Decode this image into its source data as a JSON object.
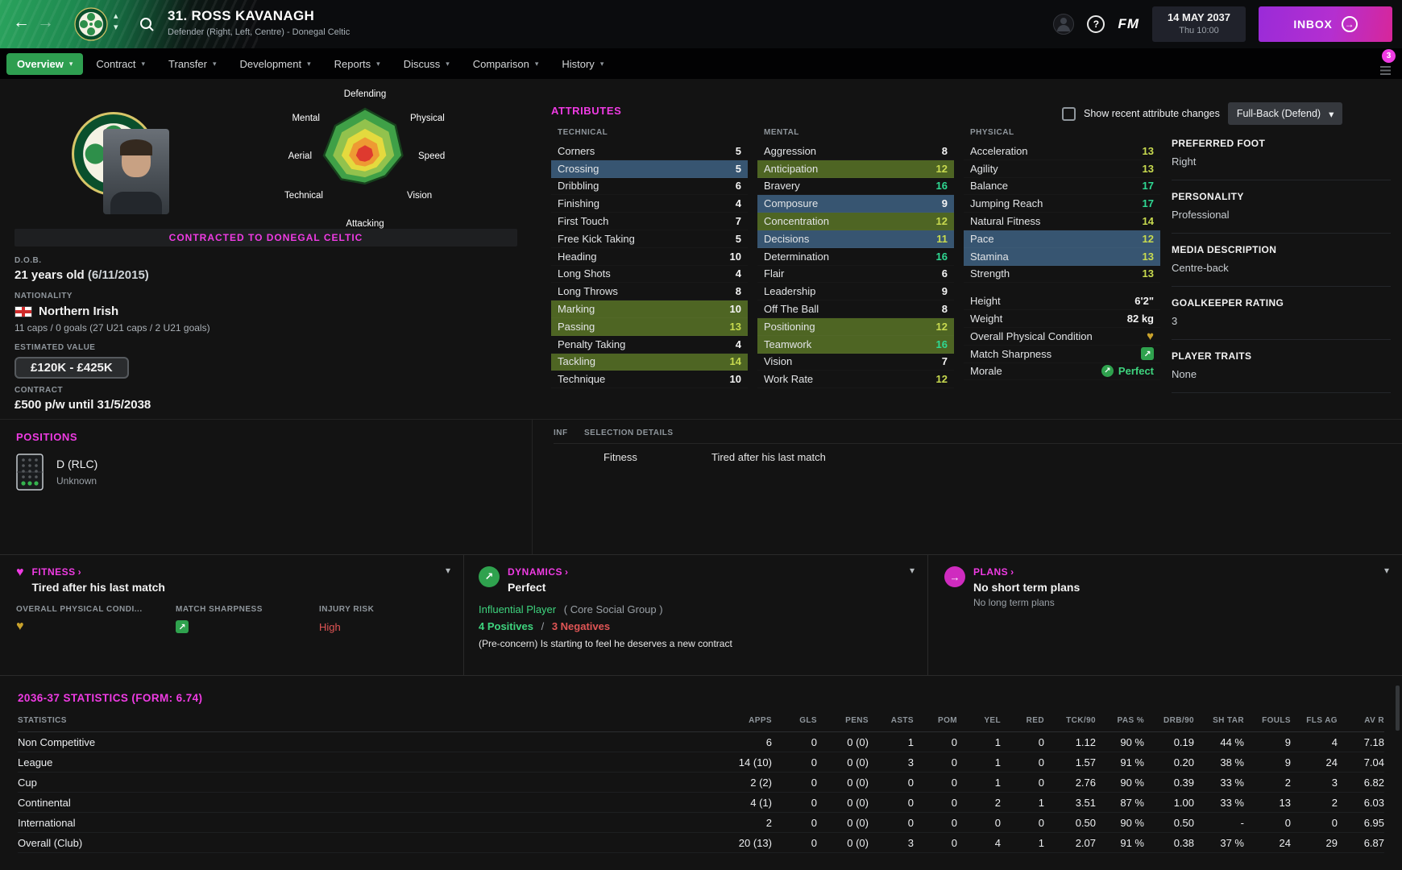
{
  "colors": {
    "accent": "#ef3be3",
    "tab_green": "#2e9e50",
    "key_attr_bg": "#4e6523",
    "pref_attr_bg": "#375571",
    "value_high": "#2fd993",
    "value_mid": "#c8da4f",
    "positive": "#3ed47e",
    "negative": "#e05555",
    "inbox_purple": "#b42fd0"
  },
  "icons": {
    "back_arrow": "←",
    "forward_arrow": "→",
    "cycle_up": "▴",
    "cycle_down": "▾",
    "chevron_down": "▾",
    "dropdown_chevron": "▾",
    "panel_link_arrow": "›",
    "arrow_up_right": "↗",
    "heart": "♥",
    "inbox_arrow": "→",
    "help": "?"
  },
  "topbar": {
    "player_title": "31. ROSS KAVANAGH",
    "player_subtitle": "Defender (Right, Left, Centre) - Donegal Celtic",
    "date": "14 MAY 2037",
    "time": "Thu 10:00",
    "inbox": "INBOX",
    "fm": "FM"
  },
  "notification_count": "3",
  "tabs": [
    {
      "label": "Overview",
      "selected": true
    },
    {
      "label": "Contract"
    },
    {
      "label": "Transfer"
    },
    {
      "label": "Development"
    },
    {
      "label": "Reports"
    },
    {
      "label": "Discuss"
    },
    {
      "label": "Comparison"
    },
    {
      "label": "History"
    }
  ],
  "profile": {
    "contracted": "CONTRACTED TO DONEGAL CELTIC",
    "dob_label": "D.O.B.",
    "age": "21 years old",
    "dob": "(6/11/2015)",
    "nationality_label": "NATIONALITY",
    "nationality": "Northern Irish",
    "caps": "11 caps / 0 goals (27 U21 caps / 2 U21 goals)",
    "value_label": "ESTIMATED VALUE",
    "value": "£120K - £425K",
    "contract_label": "CONTRACT",
    "contract": "£500 p/w until 31/5/2038"
  },
  "positions": {
    "header": "POSITIONS",
    "primary": "D (RLC)",
    "familiarity": "Unknown"
  },
  "radar": {
    "labels": [
      "Defending",
      "Physical",
      "Speed",
      "Vision",
      "Attacking",
      "Technical",
      "Aerial",
      "Mental"
    ],
    "shape": [
      1.0,
      0.92,
      0.8,
      0.62,
      0.6,
      0.72,
      0.88,
      0.9
    ]
  },
  "attributes": {
    "header": "ATTRIBUTES",
    "controls": {
      "show_changes": "Show recent attribute changes",
      "role": "Full-Back (Defend)"
    },
    "technical": {
      "title": "TECHNICAL",
      "rows": [
        {
          "name": "Corners",
          "value": 5,
          "hl": ""
        },
        {
          "name": "Crossing",
          "value": 5,
          "hl": "pref"
        },
        {
          "name": "Dribbling",
          "value": 6,
          "hl": ""
        },
        {
          "name": "Finishing",
          "value": 4,
          "hl": ""
        },
        {
          "name": "First Touch",
          "value": 7,
          "hl": ""
        },
        {
          "name": "Free Kick Taking",
          "value": 5,
          "hl": ""
        },
        {
          "name": "Heading",
          "value": 10,
          "hl": ""
        },
        {
          "name": "Long Shots",
          "value": 4,
          "hl": ""
        },
        {
          "name": "Long Throws",
          "value": 8,
          "hl": ""
        },
        {
          "name": "Marking",
          "value": 10,
          "hl": "key"
        },
        {
          "name": "Passing",
          "value": 13,
          "hl": "key"
        },
        {
          "name": "Penalty Taking",
          "value": 4,
          "hl": ""
        },
        {
          "name": "Tackling",
          "value": 14,
          "hl": "key"
        },
        {
          "name": "Technique",
          "value": 10,
          "hl": ""
        }
      ]
    },
    "mental": {
      "title": "MENTAL",
      "rows": [
        {
          "name": "Aggression",
          "value": 8,
          "hl": ""
        },
        {
          "name": "Anticipation",
          "value": 12,
          "hl": "key"
        },
        {
          "name": "Bravery",
          "value": 16,
          "hl": ""
        },
        {
          "name": "Composure",
          "value": 9,
          "hl": "pref"
        },
        {
          "name": "Concentration",
          "value": 12,
          "hl": "key"
        },
        {
          "name": "Decisions",
          "value": 11,
          "hl": "pref"
        },
        {
          "name": "Determination",
          "value": 16,
          "hl": ""
        },
        {
          "name": "Flair",
          "value": 6,
          "hl": ""
        },
        {
          "name": "Leadership",
          "value": 9,
          "hl": ""
        },
        {
          "name": "Off The Ball",
          "value": 8,
          "hl": ""
        },
        {
          "name": "Positioning",
          "value": 12,
          "hl": "key"
        },
        {
          "name": "Teamwork",
          "value": 16,
          "hl": "key"
        },
        {
          "name": "Vision",
          "value": 7,
          "hl": ""
        },
        {
          "name": "Work Rate",
          "value": 12,
          "hl": ""
        }
      ]
    },
    "physical": {
      "title": "PHYSICAL",
      "rows": [
        {
          "name": "Acceleration",
          "value": 13,
          "hl": ""
        },
        {
          "name": "Agility",
          "value": 13,
          "hl": ""
        },
        {
          "name": "Balance",
          "value": 17,
          "hl": ""
        },
        {
          "name": "Jumping Reach",
          "value": 17,
          "hl": ""
        },
        {
          "name": "Natural Fitness",
          "value": 14,
          "hl": ""
        },
        {
          "name": "Pace",
          "value": 12,
          "hl": "pref"
        },
        {
          "name": "Stamina",
          "value": 13,
          "hl": "pref"
        },
        {
          "name": "Strength",
          "value": 13,
          "hl": ""
        }
      ]
    },
    "extras": [
      {
        "name": "Height",
        "value": "6'2\""
      },
      {
        "name": "Weight",
        "value": "82 kg"
      },
      {
        "name": "Overall Physical Condition",
        "icon": "condition-heart"
      },
      {
        "name": "Match Sharpness",
        "icon": "sharpness"
      },
      {
        "name": "Morale",
        "value": "Perfect",
        "icon": "morale"
      }
    ]
  },
  "side_info": [
    {
      "label": "PREFERRED FOOT",
      "value": "Right"
    },
    {
      "label": "PERSONALITY",
      "value": "Professional"
    },
    {
      "label": "MEDIA DESCRIPTION",
      "value": "Centre-back"
    },
    {
      "label": "GOALKEEPER RATING",
      "value": "3"
    },
    {
      "label": "PLAYER TRAITS",
      "value": "None"
    }
  ],
  "selection": {
    "inf": "INF",
    "title": "SELECTION DETAILS",
    "rows": [
      {
        "label": "Fitness",
        "value": "Tired after his last match"
      }
    ]
  },
  "panels": {
    "fitness": {
      "title": "FITNESS",
      "status": "Tired after his last match",
      "condition_label": "OVERALL PHYSICAL CONDI...",
      "sharpness_label": "MATCH SHARPNESS",
      "injury_label": "INJURY RISK",
      "injury_value": "High"
    },
    "dynamics": {
      "title": "DYNAMICS",
      "status": "Perfect",
      "role": "Influential Player",
      "role_group": "( Core Social Group )",
      "positives": "4 Positives",
      "separator": "/",
      "negatives": "3 Negatives",
      "concern": "(Pre-concern) Is starting to feel he deserves a new contract"
    },
    "plans": {
      "title": "PLANS",
      "short_term": "No short term plans",
      "long_term": "No long term plans"
    }
  },
  "stats": {
    "header": "2036-37 STATISTICS (FORM: 6.74)",
    "columns": [
      "STATISTICS",
      "APPS",
      "GLS",
      "PENS",
      "ASTS",
      "POM",
      "YEL",
      "RED",
      "TCK/90",
      "PAS %",
      "DRB/90",
      "SH TAR",
      "FOULS",
      "FLS AG",
      "AV R"
    ],
    "rows": [
      [
        "Non Competitive",
        "6",
        "0",
        "0 (0)",
        "1",
        "0",
        "1",
        "0",
        "1.12",
        "90 %",
        "0.19",
        "44 %",
        "9",
        "4",
        "7.18"
      ],
      [
        "League",
        "14 (10)",
        "0",
        "0 (0)",
        "3",
        "0",
        "1",
        "0",
        "1.57",
        "91 %",
        "0.20",
        "38 %",
        "9",
        "24",
        "7.04"
      ],
      [
        "Cup",
        "2 (2)",
        "0",
        "0 (0)",
        "0",
        "0",
        "1",
        "0",
        "2.76",
        "90 %",
        "0.39",
        "33 %",
        "2",
        "3",
        "6.82"
      ],
      [
        "Continental",
        "4 (1)",
        "0",
        "0 (0)",
        "0",
        "0",
        "2",
        "1",
        "3.51",
        "87 %",
        "1.00",
        "33 %",
        "13",
        "2",
        "6.03"
      ],
      [
        "International",
        "2",
        "0",
        "0 (0)",
        "0",
        "0",
        "0",
        "0",
        "0.50",
        "90 %",
        "0.50",
        "-",
        "0",
        "0",
        "6.95"
      ],
      [
        "Overall (Club)",
        "20 (13)",
        "0",
        "0 (0)",
        "3",
        "0",
        "4",
        "1",
        "2.07",
        "91 %",
        "0.38",
        "37 %",
        "24",
        "29",
        "6.87"
      ]
    ]
  }
}
